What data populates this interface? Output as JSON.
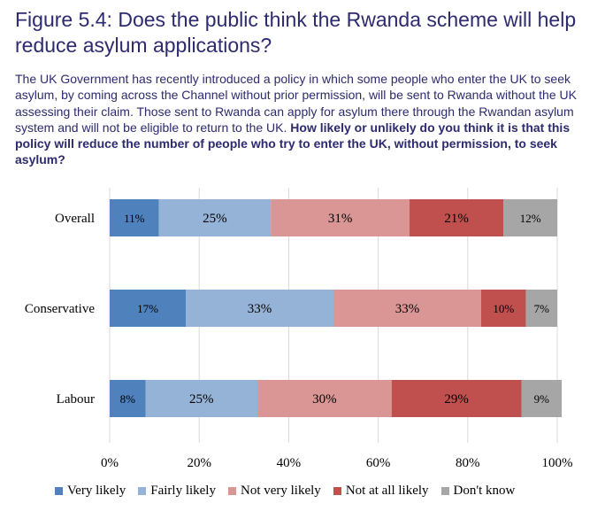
{
  "title": "Figure 5.4: Does the public think the Rwanda scheme will help reduce asylum applications?",
  "intro": "The UK Government has recently introduced a policy in which some people who enter the UK to seek asylum, by coming across the Channel without prior permission, will be sent to Rwanda without the UK assessing their claim. Those sent to Rwanda can apply for asylum there through the Rwandan asylum system and will not be eligible to return to the UK.",
  "question": "How likely or unlikely do you think it is that this policy will reduce the number of people who try to enter the UK, without permission, to seek asylum?",
  "chart_data": {
    "type": "bar",
    "orientation": "horizontal",
    "stacked": true,
    "categories": [
      "Overall",
      "Conservative",
      "Labour"
    ],
    "series": [
      {
        "name": "Very likely",
        "color": "#4f81bd",
        "values": [
          11,
          17,
          8
        ]
      },
      {
        "name": "Fairly likely",
        "color": "#95b3d7",
        "values": [
          25,
          33,
          25
        ]
      },
      {
        "name": "Not very likely",
        "color": "#da9694",
        "values": [
          31,
          33,
          30
        ]
      },
      {
        "name": "Not at all likely",
        "color": "#c0504d",
        "values": [
          21,
          10,
          29
        ]
      },
      {
        "name": "Don't know",
        "color": "#a6a6a6",
        "values": [
          12,
          7,
          9
        ]
      }
    ],
    "xlim": [
      0,
      100
    ],
    "xticks": [
      "0%",
      "20%",
      "40%",
      "60%",
      "80%",
      "100%"
    ],
    "grid": true,
    "legend": "bottom"
  }
}
